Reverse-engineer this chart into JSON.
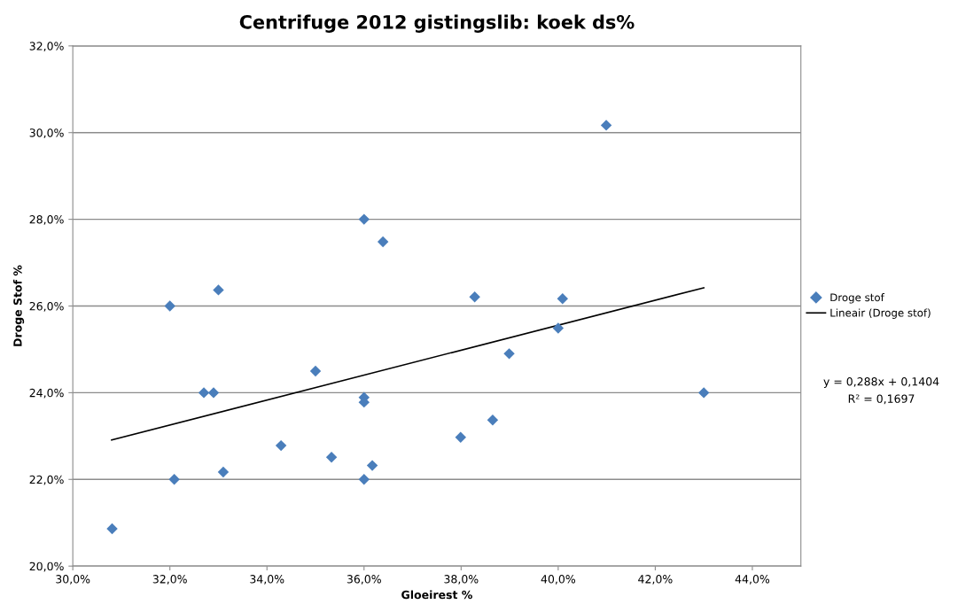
{
  "chart_data": {
    "type": "scatter",
    "title": "Centrifuge 2012 gistingslib: koek ds%",
    "xlabel": "Gloeirest %",
    "ylabel": "Droge Stof %",
    "series": [
      {
        "name": "Droge stof",
        "color": "#4a7ebb",
        "marker": "diamond",
        "x": [
          30.81,
          32.0,
          32.09,
          32.7,
          32.9,
          33.0,
          33.1,
          34.29,
          35.0,
          35.33,
          36.0,
          36.39,
          36.0,
          36.0,
          36.0,
          36.17,
          40.99,
          38.28,
          40.09,
          40.0,
          38.99,
          38.65,
          37.99,
          43.0
        ],
        "values": [
          20.86,
          26.0,
          22.0,
          24.0,
          24.0,
          26.37,
          22.17,
          22.78,
          24.5,
          22.51,
          28.0,
          27.48,
          23.89,
          23.78,
          22.0,
          22.32,
          30.17,
          26.21,
          26.17,
          25.49,
          24.9,
          23.37,
          22.97,
          24.0
        ]
      },
      {
        "name": "Lineair (Droge stof)",
        "type": "line",
        "color": "#000000",
        "marker": "none",
        "line_style": "solid",
        "x": [
          30.8,
          43.0
        ],
        "values": [
          22.91,
          26.42
        ]
      }
    ],
    "annotations": [
      "y = 0,288x + 0,1404",
      "R² = 0,1697"
    ],
    "xlim": [
      30,
      45
    ],
    "ylim": [
      20,
      32
    ],
    "xticks": [
      {
        "value": 30,
        "label": "30,0%"
      },
      {
        "value": 32,
        "label": "32,0%"
      },
      {
        "value": 34,
        "label": "34,0%"
      },
      {
        "value": 36,
        "label": "36,0%"
      },
      {
        "value": 38,
        "label": "38,0%"
      },
      {
        "value": 40,
        "label": "40,0%"
      },
      {
        "value": 42,
        "label": "42,0%"
      },
      {
        "value": 44,
        "label": "44,0%"
      }
    ],
    "yticks": [
      {
        "value": 20,
        "label": "20,0%"
      },
      {
        "value": 22,
        "label": "22,0%"
      },
      {
        "value": 24,
        "label": "24,0%"
      },
      {
        "value": 26,
        "label": "26,0%"
      },
      {
        "value": 28,
        "label": "28,0%"
      },
      {
        "value": 30,
        "label": "30,0%"
      },
      {
        "value": 32,
        "label": "32,0%"
      }
    ],
    "grid": "y",
    "legend": "right"
  }
}
